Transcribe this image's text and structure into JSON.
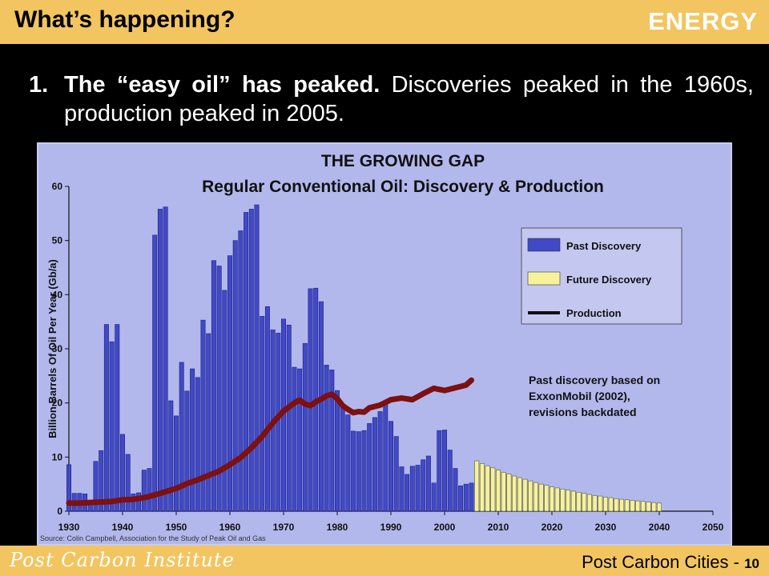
{
  "header": {
    "title": "What’s happening?",
    "section": "ENERGY"
  },
  "bullet": {
    "number": "1.",
    "bold_text": "The “easy oil” has peaked.",
    "rest_text": "  Discoveries peaked in the 1960s, production peaked in 2005."
  },
  "footer": {
    "logo_text": "Post Carbon Institute",
    "page_label": "Post Carbon Cities - ",
    "page_number": "10"
  },
  "colors": {
    "band": "#f2c560",
    "panel": "#b2b8ec",
    "past_bar": "#4149c6",
    "future_bar": "#f7f29a",
    "production": "#7d1010"
  },
  "chart_data": {
    "type": "bar",
    "title": "THE GROWING GAP",
    "subtitle": "Regular Conventional Oil: Discovery & Production",
    "ylabel": "Billion Barrels Of Oil Per Year (Gb/a)",
    "xlabel": "",
    "xlim": [
      1930,
      2050
    ],
    "ylim": [
      0,
      60
    ],
    "x_ticks": [
      1930,
      1940,
      1950,
      1960,
      1970,
      1980,
      1990,
      2000,
      2010,
      2020,
      2030,
      2040,
      2050
    ],
    "y_ticks": [
      0,
      10,
      20,
      30,
      40,
      50,
      60
    ],
    "grid": false,
    "legend_position": "right",
    "legend": [
      "Past Discovery",
      "Future Discovery",
      "Production"
    ],
    "annotation": "Past discovery based on ExxonMobil (2002), revisions backdated",
    "source": "Source: Colin Campbell, Association for the Study of Peak Oil and Gas",
    "series": [
      {
        "name": "Past Discovery",
        "x": [
          1930,
          1931,
          1932,
          1933,
          1934,
          1935,
          1936,
          1937,
          1938,
          1939,
          1940,
          1941,
          1942,
          1943,
          1944,
          1945,
          1946,
          1947,
          1948,
          1949,
          1950,
          1951,
          1952,
          1953,
          1954,
          1955,
          1956,
          1957,
          1958,
          1959,
          1960,
          1961,
          1962,
          1963,
          1964,
          1965,
          1966,
          1967,
          1968,
          1969,
          1970,
          1971,
          1972,
          1973,
          1974,
          1975,
          1976,
          1977,
          1978,
          1979,
          1980,
          1981,
          1982,
          1983,
          1984,
          1985,
          1986,
          1987,
          1988,
          1989,
          1990,
          1991,
          1992,
          1993,
          1994,
          1995,
          1996,
          1997,
          1998,
          1999,
          2000,
          2001,
          2002,
          2003,
          2004,
          2005
        ],
        "values": [
          8.6,
          3.3,
          3.3,
          3.2,
          1.4,
          9.2,
          11.2,
          34.5,
          31.3,
          34.5,
          14.2,
          10.5,
          3.2,
          3.4,
          7.6,
          7.9,
          51,
          55.8,
          56.2,
          20.4,
          17.6,
          27.5,
          22.2,
          26.3,
          24.7,
          35.3,
          32.8,
          46.3,
          45.3,
          40.8,
          47.2,
          50,
          51.8,
          55.2,
          55.8,
          56.6,
          36,
          37.8,
          33.5,
          32.9,
          35.5,
          34.4,
          26.6,
          26.3,
          31,
          41.1,
          41.2,
          38.7,
          27,
          26.1,
          22.3,
          19.5,
          17.8,
          14.8,
          14.7,
          14.9,
          16.2,
          17.3,
          18.4,
          20.4,
          16.6,
          13.8,
          8.2,
          6.8,
          8.3,
          8.5,
          9.5,
          10.2,
          5.2,
          14.9,
          15,
          11.3,
          7.9,
          4.7,
          5,
          5.2
        ]
      },
      {
        "name": "Future Discovery",
        "x": [
          2006,
          2007,
          2008,
          2009,
          2010,
          2011,
          2012,
          2013,
          2014,
          2015,
          2016,
          2017,
          2018,
          2019,
          2020,
          2021,
          2022,
          2023,
          2024,
          2025,
          2026,
          2027,
          2028,
          2029,
          2030,
          2031,
          2032,
          2033,
          2034,
          2035,
          2036,
          2037,
          2038,
          2039,
          2040
        ],
        "values": [
          9.3,
          8.8,
          8.4,
          8,
          7.6,
          7.2,
          6.9,
          6.5,
          6.2,
          5.9,
          5.6,
          5.3,
          5,
          4.8,
          4.5,
          4.3,
          4.1,
          3.9,
          3.7,
          3.5,
          3.3,
          3.1,
          2.9,
          2.8,
          2.6,
          2.5,
          2.3,
          2.2,
          2.1,
          2,
          1.9,
          1.8,
          1.7,
          1.6,
          1.5
        ]
      },
      {
        "name": "Production",
        "x": [
          1930,
          1932,
          1934,
          1936,
          1938,
          1940,
          1942,
          1944,
          1946,
          1948,
          1950,
          1952,
          1954,
          1956,
          1958,
          1960,
          1962,
          1964,
          1966,
          1968,
          1970,
          1972,
          1973,
          1974,
          1975,
          1976,
          1977,
          1978,
          1979,
          1980,
          1981,
          1982,
          1983,
          1984,
          1985,
          1986,
          1988,
          1990,
          1992,
          1994,
          1996,
          1998,
          2000,
          2002,
          2004,
          2005
        ],
        "values": [
          1.5,
          1.5,
          1.6,
          1.7,
          1.8,
          2.1,
          2.2,
          2.5,
          3,
          3.6,
          4.2,
          5.1,
          5.8,
          6.6,
          7.4,
          8.6,
          9.9,
          11.7,
          13.8,
          16.3,
          18.5,
          20,
          20.5,
          19.8,
          19.5,
          20.2,
          20.7,
          21.3,
          21.6,
          20.8,
          19.5,
          18.8,
          18.2,
          18.4,
          18.3,
          19.1,
          19.6,
          20.6,
          20.9,
          20.6,
          21.7,
          22.7,
          22.3,
          22.8,
          23.3,
          24.2
        ]
      }
    ]
  }
}
